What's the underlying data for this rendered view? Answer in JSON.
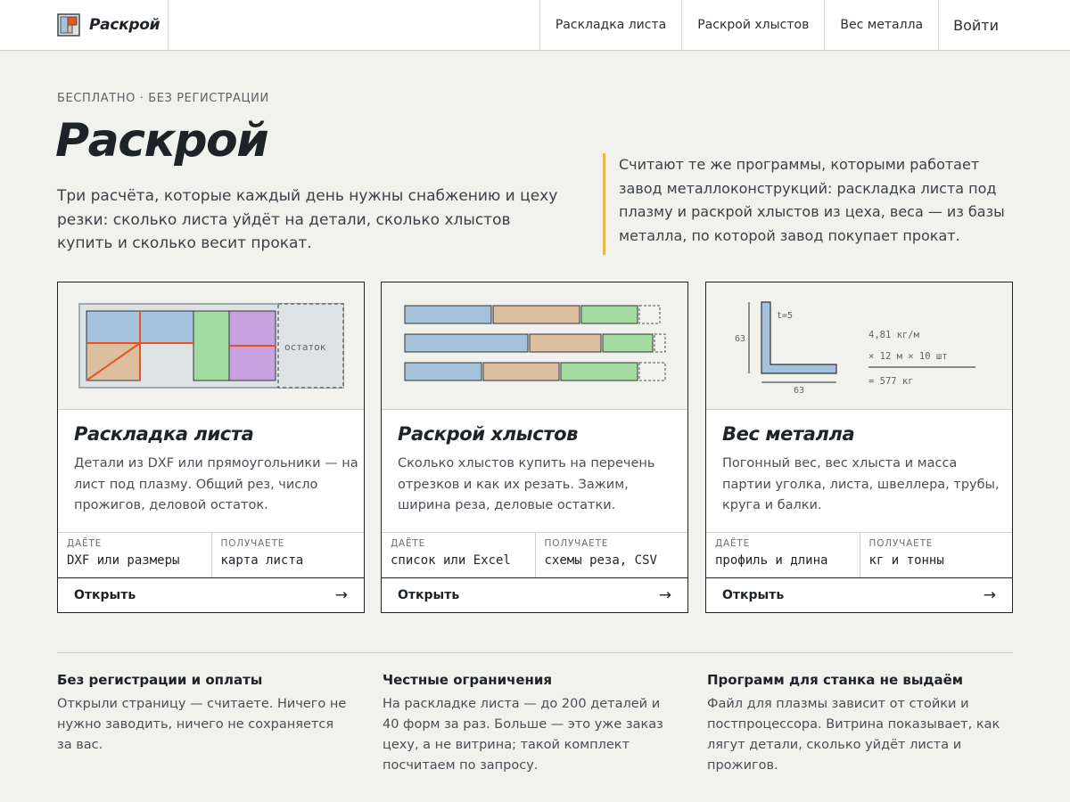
{
  "header": {
    "brand": "Раскрой",
    "nav": [
      "Раскладка листа",
      "Раскрой хлыстов",
      "Вес металла"
    ],
    "login": "Войти"
  },
  "hero": {
    "eyebrow": "БЕСПЛАТНО · БЕЗ РЕГИСТРАЦИИ",
    "title": "Раскрой",
    "lead": "Три расчёта, которые каждый день нужны снабжению и цеху резки: сколько листа уйдёт на детали, сколько хлыстов купить и сколько весит прокат.",
    "quote": "Считают те же программы, которыми работает завод металлоконструкций: раскладка листа под плазму и раскрой хлыстов из цеха, веса — из базы металла, по которой завод покупает прокат."
  },
  "colors": {
    "accent": "#e9b949",
    "part_blue": "#a4c2dc",
    "part_tan": "#dcbf9f",
    "part_green": "#a3dba0",
    "part_purple": "#c8a2de",
    "cut_line": "#e8531f",
    "sheet": "#dde2e5"
  },
  "cards": [
    {
      "title": "Раскладка листа",
      "desc": "Детали из DXF или прямоугольники — на лист под плазму. Общий рез, число прожигов, деловой остаток.",
      "in_label": "ДАЁТЕ",
      "in_value": "DXF или размеры",
      "out_label": "ПОЛУЧАЕТЕ",
      "out_value": "карта листа",
      "open": "Открыть",
      "arrow": "→",
      "illus_text": "остаток"
    },
    {
      "title": "Раскрой хлыстов",
      "desc": "Сколько хлыстов купить на перечень отрезков и как их резать. Зажим, ширина реза, деловые остатки.",
      "in_label": "ДАЁТЕ",
      "in_value": "список или Excel",
      "out_label": "ПОЛУЧАЕТЕ",
      "out_value": "схемы реза, CSV",
      "open": "Открыть",
      "arrow": "→"
    },
    {
      "title": "Вес металла",
      "desc": "Погонный вес, вес хлыста и масса партии уголка, листа, швеллера, трубы, круга и балки.",
      "in_label": "ДАЁТЕ",
      "in_value": "профиль и длина",
      "out_label": "ПОЛУЧАЕТЕ",
      "out_value": "кг и тонны",
      "open": "Открыть",
      "arrow": "→",
      "illus_t": "t=5",
      "illus_height": "63",
      "illus_width": "63",
      "illus_line1": "4,81 кг/м",
      "illus_line2": "× 12 м × 10 шт",
      "illus_line3": "= 577 кг"
    }
  ],
  "notes": [
    {
      "title": "Без регистрации и оплаты",
      "text": "Открыли страницу — считаете. Ничего не нужно заводить, ничего не сохраняется за вас."
    },
    {
      "title": "Честные ограничения",
      "text": "На раскладке листа — до 200 деталей и 40 форм за раз. Больше — это уже заказ цеху, а не витрина; такой комплект посчитаем по запросу."
    },
    {
      "title": "Программ для станка не выдаём",
      "text": "Файл для плазмы зависит от стойки и постпроцессора. Витрина показывает, как лягут детали, сколько уйдёт листа и прожигов."
    }
  ]
}
